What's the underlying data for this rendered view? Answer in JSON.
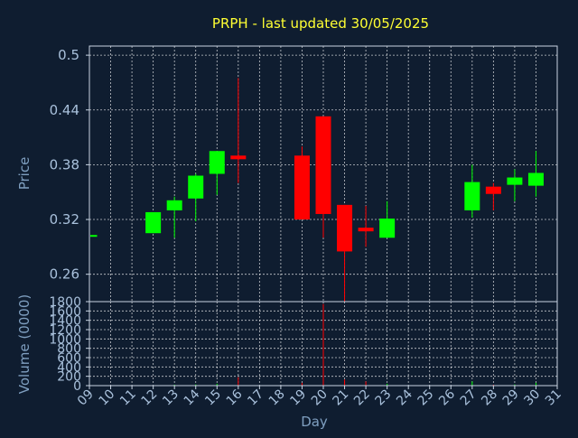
{
  "chart_data": {
    "type": "candlestick",
    "title": "PRPH - last updated 30/05/2025",
    "xlabel": "Day",
    "colors": {
      "up": "#00ff00",
      "down": "#ff0000",
      "title": "#ffff33",
      "background": "#0f1d30"
    },
    "x_ticks": [
      "09",
      "10",
      "11",
      "12",
      "13",
      "14",
      "15",
      "16",
      "17",
      "18",
      "19",
      "20",
      "21",
      "22",
      "23",
      "24",
      "25",
      "26",
      "27",
      "28",
      "29",
      "30",
      "31"
    ],
    "price_panel": {
      "ylabel": "Price",
      "ylim": [
        0.23,
        0.51
      ],
      "y_ticks": [
        0.26,
        0.32,
        0.38,
        0.44,
        0.5
      ],
      "y_tick_labels": [
        "0.26",
        "0.32",
        "0.38",
        "0.44",
        "0.5"
      ]
    },
    "volume_panel": {
      "ylabel": "Volume (0000)",
      "ylim": [
        0,
        1800
      ],
      "y_ticks": [
        0,
        200,
        400,
        600,
        800,
        1000,
        1200,
        1400,
        1600,
        1800
      ],
      "y_tick_labels": [
        "0",
        "200",
        "400",
        "600",
        "800",
        "1000",
        "1200",
        "1400",
        "1600",
        "1800"
      ]
    },
    "candles": [
      {
        "day": 9,
        "open": 0.303,
        "high": 0.303,
        "low": 0.303,
        "close": 0.303,
        "volume": 5
      },
      {
        "day": 12,
        "open": 0.305,
        "high": 0.328,
        "low": 0.305,
        "close": 0.328,
        "volume": 10
      },
      {
        "day": 13,
        "open": 0.33,
        "high": 0.345,
        "low": 0.3,
        "close": 0.341,
        "volume": 20
      },
      {
        "day": 14,
        "open": 0.343,
        "high": 0.37,
        "low": 0.318,
        "close": 0.368,
        "volume": 25
      },
      {
        "day": 15,
        "open": 0.37,
        "high": 0.395,
        "low": 0.347,
        "close": 0.395,
        "volume": 40
      },
      {
        "day": 16,
        "open": 0.39,
        "high": 0.475,
        "low": 0.36,
        "close": 0.386,
        "volume": 180
      },
      {
        "day": 19,
        "open": 0.39,
        "high": 0.4,
        "low": 0.32,
        "close": 0.32,
        "volume": 60
      },
      {
        "day": 20,
        "open": 0.433,
        "high": 0.433,
        "low": 0.3,
        "close": 0.326,
        "volume": 1750
      },
      {
        "day": 21,
        "open": 0.336,
        "high": 0.336,
        "low": 0.23,
        "close": 0.285,
        "volume": 130
      },
      {
        "day": 22,
        "open": 0.311,
        "high": 0.335,
        "low": 0.29,
        "close": 0.307,
        "volume": 90
      },
      {
        "day": 23,
        "open": 0.3,
        "high": 0.34,
        "low": 0.3,
        "close": 0.321,
        "volume": 40
      },
      {
        "day": 27,
        "open": 0.33,
        "high": 0.38,
        "low": 0.322,
        "close": 0.361,
        "volume": 90
      },
      {
        "day": 28,
        "open": 0.356,
        "high": 0.36,
        "low": 0.33,
        "close": 0.348,
        "volume": 20
      },
      {
        "day": 29,
        "open": 0.358,
        "high": 0.375,
        "low": 0.34,
        "close": 0.366,
        "volume": 25
      },
      {
        "day": 30,
        "open": 0.357,
        "high": 0.395,
        "low": 0.345,
        "close": 0.371,
        "volume": 60
      }
    ]
  }
}
